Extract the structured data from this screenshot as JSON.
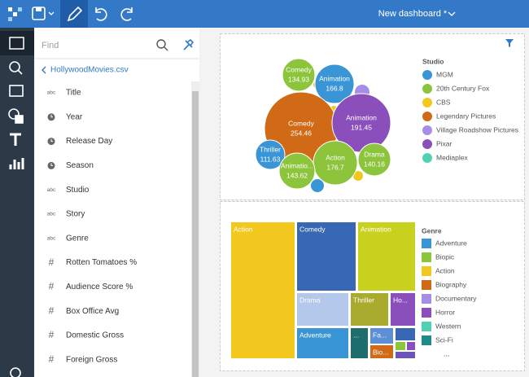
{
  "toolbar": {
    "title": "New dashboard *"
  },
  "sidebar": {
    "search_placeholder": "Find",
    "source": "HollywoodMovies.csv",
    "fields": [
      {
        "icon": "abc",
        "name": "Title"
      },
      {
        "icon": null,
        "name": "Year"
      },
      {
        "icon": null,
        "name": "Release Day"
      },
      {
        "icon": null,
        "name": "Season"
      },
      {
        "icon": "abc",
        "name": "Studio"
      },
      {
        "icon": "abc",
        "name": "Story"
      },
      {
        "icon": "abc",
        "name": "Genre"
      },
      {
        "icon": "#",
        "name": "Rotten Tomatoes %"
      },
      {
        "icon": "#",
        "name": "Audience Score %"
      },
      {
        "icon": "#",
        "name": "Box Office Avg"
      },
      {
        "icon": "#",
        "name": "Domestic Gross"
      },
      {
        "icon": "#",
        "name": "Foreign Gross"
      }
    ]
  },
  "bubble_chart": {
    "legend_title": "Studio",
    "legend": [
      {
        "name": "MGM",
        "color": "#3a95d6"
      },
      {
        "name": "20th Century Fox",
        "color": "#8cc43c"
      },
      {
        "name": "CBS",
        "color": "#f2c81e"
      },
      {
        "name": "Legendary Pictures",
        "color": "#d06a17"
      },
      {
        "name": "Village Roadshow Pictures",
        "color": "#a58de8"
      },
      {
        "name": "Pixar",
        "color": "#8a4fba"
      },
      {
        "name": "Mediaplex",
        "color": "#4fd1b4"
      }
    ],
    "bubbles": [
      {
        "label": "Comedy",
        "value": 134.93,
        "color": "#8cc43c"
      },
      {
        "label": "Animation",
        "value": 166.8,
        "color": "#3a95d6"
      },
      {
        "label": "Comedy",
        "value": 254.46,
        "color": "#d06a17"
      },
      {
        "label": "Animation",
        "value": 191.45,
        "color": "#8a4fba"
      },
      {
        "label": "Thriller",
        "value": 111.63,
        "color": "#3a95d6"
      },
      {
        "label": "Action",
        "value": 176.7,
        "color": "#8cc43c"
      },
      {
        "label": "Drama",
        "value": 140.16,
        "color": "#8cc43c"
      },
      {
        "label": "Animatio...",
        "value": 143.62,
        "color": "#8cc43c"
      }
    ]
  },
  "treemap": {
    "legend_title": "Genre",
    "legend": [
      {
        "name": "Adventure",
        "color": "#3a95d6"
      },
      {
        "name": "Biopic",
        "color": "#8cc43c"
      },
      {
        "name": "Action",
        "color": "#f2c81e"
      },
      {
        "name": "Biography",
        "color": "#d06a17"
      },
      {
        "name": "Documentary",
        "color": "#a58de8"
      },
      {
        "name": "Horror",
        "color": "#8a4fba"
      },
      {
        "name": "Western",
        "color": "#4fd1b4"
      },
      {
        "name": "Sci-Fi",
        "color": "#1f8a8a"
      }
    ],
    "more": "...",
    "tiles": [
      {
        "label": "Action",
        "color": "#f2c81e"
      },
      {
        "label": "Comedy",
        "color": "#3868b4"
      },
      {
        "label": "Animation",
        "color": "#c9d11f"
      },
      {
        "label": "Drama",
        "color": "#b3c8ea"
      },
      {
        "label": "Thriller",
        "color": "#a8ab2e"
      },
      {
        "label": "Ho...",
        "color": "#8a4fba"
      },
      {
        "label": "Adventure",
        "color": "#3a95d6"
      },
      {
        "label": "...",
        "color": "#1f6e6e"
      },
      {
        "label": "Fa...",
        "color": "#5b8fd6"
      },
      {
        "label": "Bio...",
        "color": "#d06a17"
      }
    ]
  }
}
